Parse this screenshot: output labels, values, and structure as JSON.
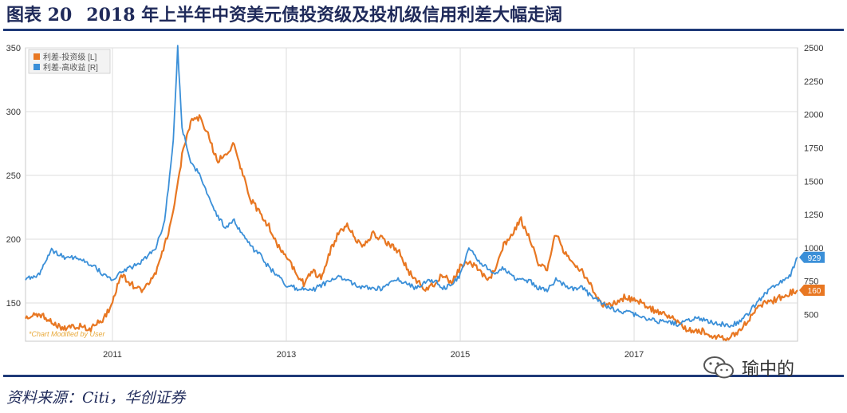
{
  "figure": {
    "number": "图表 20",
    "title": "2018 年上半年中资美元债投资级及投机级信用利差大幅走阔"
  },
  "source": "资料来源：Citi，华创证券",
  "watermark": {
    "text": "瑜中的",
    "icon": "wechat-icon"
  },
  "chart_data": {
    "type": "line",
    "x_ticks": [
      "2011",
      "2013",
      "2015",
      "2017"
    ],
    "xlim": [
      "2010-01",
      "2018-10"
    ],
    "left_axis": {
      "ylim": [
        120,
        350
      ],
      "ticks": [
        150,
        200,
        250,
        300,
        350
      ]
    },
    "right_axis": {
      "ylim": [
        300,
        2500
      ],
      "ticks": [
        500,
        750,
        1000,
        1250,
        1500,
        1750,
        2000,
        2250,
        2500
      ]
    },
    "legend": {
      "placement": "top-left",
      "entries": [
        "利差-投资级 [L]",
        "利差-高收益 [R]"
      ]
    },
    "annotation": "*Chart Modified by User",
    "end_labels": [
      {
        "series": "利差-高收益 [R]",
        "value": "929"
      },
      {
        "series": "利差-投资级 [L]",
        "value": "160"
      }
    ],
    "series": [
      {
        "name": "利差-投资级 [L]",
        "axis": "left",
        "color": "#e87722",
        "x": [
          2010.0,
          2010.15,
          2010.3,
          2010.45,
          2010.6,
          2010.75,
          2010.9,
          2011.0,
          2011.1,
          2011.2,
          2011.35,
          2011.5,
          2011.6,
          2011.7,
          2011.8,
          2011.9,
          2012.0,
          2012.1,
          2012.2,
          2012.3,
          2012.4,
          2012.5,
          2012.6,
          2012.7,
          2012.8,
          2012.9,
          2013.0,
          2013.1,
          2013.2,
          2013.3,
          2013.4,
          2013.5,
          2013.6,
          2013.7,
          2013.8,
          2013.9,
          2014.0,
          2014.1,
          2014.2,
          2014.3,
          2014.4,
          2014.5,
          2014.6,
          2014.7,
          2014.8,
          2014.9,
          2015.0,
          2015.1,
          2015.2,
          2015.3,
          2015.4,
          2015.5,
          2015.6,
          2015.7,
          2015.8,
          2015.9,
          2016.0,
          2016.1,
          2016.2,
          2016.3,
          2016.4,
          2016.5,
          2016.6,
          2016.7,
          2016.8,
          2016.9,
          2017.0,
          2017.1,
          2017.2,
          2017.3,
          2017.4,
          2017.5,
          2017.6,
          2017.7,
          2017.8,
          2017.9,
          2018.0,
          2018.1,
          2018.2,
          2018.3,
          2018.4,
          2018.5,
          2018.6,
          2018.7,
          2018.8,
          2018.88
        ],
        "values": [
          138,
          142,
          135,
          130,
          132,
          130,
          138,
          150,
          172,
          165,
          160,
          175,
          195,
          220,
          265,
          292,
          295,
          282,
          262,
          265,
          275,
          250,
          230,
          220,
          210,
          195,
          185,
          175,
          165,
          175,
          170,
          190,
          205,
          210,
          200,
          195,
          205,
          200,
          195,
          190,
          175,
          168,
          160,
          165,
          172,
          165,
          178,
          182,
          178,
          168,
          175,
          195,
          205,
          215,
          200,
          180,
          175,
          205,
          190,
          180,
          175,
          165,
          150,
          148,
          150,
          155,
          152,
          150,
          145,
          143,
          140,
          135,
          130,
          128,
          128,
          124,
          122,
          123,
          128,
          135,
          145,
          150,
          152,
          155,
          158,
          160
        ]
      },
      {
        "name": "利差-高收益 [R]",
        "axis": "right",
        "color": "#3a8fd8",
        "x": [
          2010.0,
          2010.15,
          2010.3,
          2010.45,
          2010.6,
          2010.75,
          2010.9,
          2011.0,
          2011.1,
          2011.2,
          2011.35,
          2011.5,
          2011.6,
          2011.7,
          2011.75,
          2011.8,
          2011.9,
          2012.0,
          2012.1,
          2012.2,
          2012.3,
          2012.4,
          2012.5,
          2012.6,
          2012.7,
          2012.8,
          2012.9,
          2013.0,
          2013.1,
          2013.2,
          2013.3,
          2013.4,
          2013.5,
          2013.6,
          2013.7,
          2013.8,
          2013.9,
          2014.0,
          2014.1,
          2014.2,
          2014.3,
          2014.4,
          2014.5,
          2014.6,
          2014.7,
          2014.8,
          2014.9,
          2015.0,
          2015.1,
          2015.2,
          2015.3,
          2015.4,
          2015.5,
          2015.6,
          2015.7,
          2015.8,
          2015.9,
          2016.0,
          2016.1,
          2016.2,
          2016.3,
          2016.4,
          2016.5,
          2016.6,
          2016.7,
          2016.8,
          2016.9,
          2017.0,
          2017.1,
          2017.2,
          2017.3,
          2017.4,
          2017.5,
          2017.6,
          2017.7,
          2017.8,
          2017.9,
          2018.0,
          2018.1,
          2018.2,
          2018.3,
          2018.4,
          2018.5,
          2018.6,
          2018.7,
          2018.8,
          2018.88
        ],
        "values": [
          760,
          800,
          980,
          930,
          920,
          880,
          800,
          760,
          820,
          850,
          900,
          1000,
          1200,
          1800,
          2500,
          1900,
          1650,
          1550,
          1400,
          1250,
          1150,
          1200,
          1100,
          1000,
          950,
          850,
          800,
          720,
          700,
          690,
          680,
          720,
          750,
          800,
          750,
          720,
          700,
          700,
          690,
          750,
          760,
          720,
          700,
          740,
          760,
          700,
          720,
          800,
          1000,
          900,
          850,
          800,
          850,
          780,
          760,
          750,
          700,
          680,
          760,
          720,
          690,
          700,
          640,
          600,
          560,
          530,
          520,
          500,
          480,
          460,
          450,
          440,
          430,
          450,
          470,
          460,
          440,
          430,
          420,
          440,
          500,
          580,
          650,
          700,
          750,
          800,
          929
        ]
      }
    ]
  }
}
